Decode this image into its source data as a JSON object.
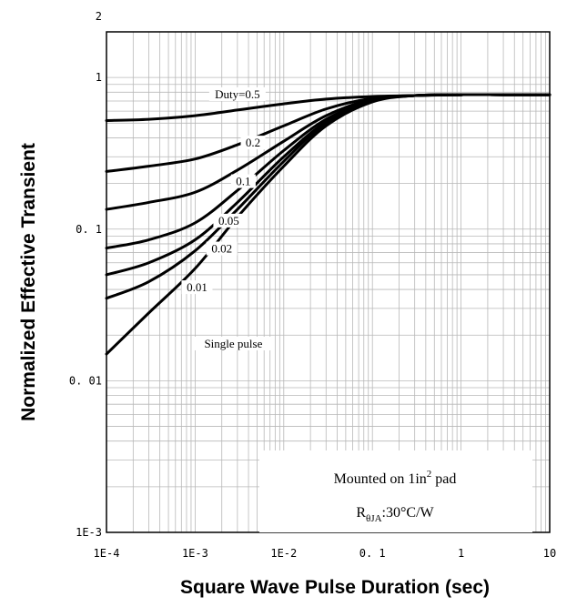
{
  "chart_data": {
    "type": "line",
    "title": "",
    "xlabel": "Square Wave Pulse Duration (sec)",
    "ylabel": "Normalized Effective Transient",
    "xscale": "log",
    "yscale": "log",
    "xlim": [
      0.0001,
      10
    ],
    "ylim": [
      0.001,
      2
    ],
    "grid": true,
    "x_ticks": [
      "1E-4",
      "1E-3",
      "1E-2",
      "0. 1",
      "1",
      "10"
    ],
    "y_ticks": [
      "1E-3",
      "0. 01",
      "0. 1",
      "1",
      "2"
    ],
    "series": [
      {
        "name": "Duty=0.5",
        "x": [
          0.0001,
          0.0003,
          0.001,
          0.003,
          0.01,
          0.03,
          0.1,
          0.3,
          1,
          3,
          10
        ],
        "y": [
          0.52,
          0.53,
          0.56,
          0.61,
          0.67,
          0.72,
          0.75,
          0.76,
          0.77,
          0.77,
          0.77
        ]
      },
      {
        "name": "0.2",
        "x": [
          0.0001,
          0.0003,
          0.001,
          0.003,
          0.01,
          0.03,
          0.1,
          0.3,
          1,
          3,
          10
        ],
        "y": [
          0.24,
          0.26,
          0.29,
          0.36,
          0.48,
          0.62,
          0.73,
          0.76,
          0.77,
          0.77,
          0.77
        ]
      },
      {
        "name": "0.1",
        "x": [
          0.0001,
          0.0003,
          0.001,
          0.003,
          0.01,
          0.03,
          0.1,
          0.3,
          1,
          3,
          10
        ],
        "y": [
          0.135,
          0.15,
          0.175,
          0.245,
          0.38,
          0.56,
          0.72,
          0.76,
          0.77,
          0.77,
          0.77
        ]
      },
      {
        "name": "0.05",
        "x": [
          0.0001,
          0.0003,
          0.001,
          0.003,
          0.01,
          0.03,
          0.1,
          0.3,
          1,
          3,
          10
        ],
        "y": [
          0.075,
          0.085,
          0.11,
          0.18,
          0.33,
          0.53,
          0.71,
          0.76,
          0.77,
          0.77,
          0.77
        ]
      },
      {
        "name": "0.02",
        "x": [
          0.0001,
          0.0003,
          0.001,
          0.003,
          0.01,
          0.03,
          0.1,
          0.3,
          1,
          3,
          10
        ],
        "y": [
          0.05,
          0.06,
          0.085,
          0.15,
          0.3,
          0.51,
          0.7,
          0.76,
          0.77,
          0.77,
          0.77
        ]
      },
      {
        "name": "0.01",
        "x": [
          0.0001,
          0.0003,
          0.001,
          0.003,
          0.01,
          0.03,
          0.1,
          0.3,
          1,
          3,
          10
        ],
        "y": [
          0.035,
          0.045,
          0.072,
          0.135,
          0.28,
          0.5,
          0.7,
          0.76,
          0.77,
          0.77,
          0.77
        ]
      },
      {
        "name": "Single pulse",
        "x": [
          0.0001,
          0.0003,
          0.001,
          0.003,
          0.01,
          0.03,
          0.1,
          0.3,
          1,
          3,
          10
        ],
        "y": [
          0.015,
          0.028,
          0.055,
          0.12,
          0.26,
          0.48,
          0.69,
          0.76,
          0.77,
          0.77,
          0.77
        ]
      }
    ],
    "note": {
      "line1_prefix": "Mounted on 1in",
      "line1_sup": "2",
      "line1_suffix": " pad",
      "line2_prefix": "R",
      "line2_sub": "θJA",
      "line2_suffix": ":30°C/W"
    }
  }
}
